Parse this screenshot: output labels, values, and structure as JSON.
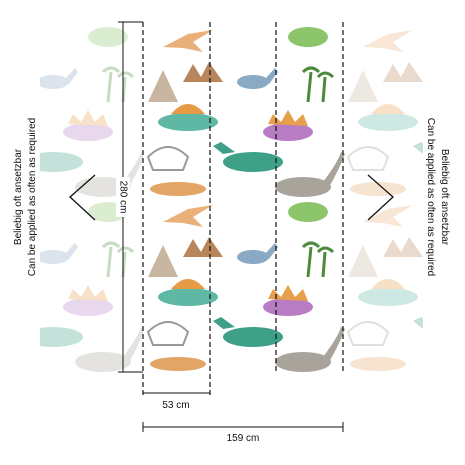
{
  "dimensions": {
    "height": "280 cm",
    "panel_width": "53 cm",
    "total_width": "159 cm"
  },
  "notes": {
    "left": {
      "line1": "Beliebig oft ansetzbar",
      "line2": "Can be applied as often as required"
    },
    "right": {
      "line1": "Beliebig oft ansetzbar",
      "line2": "Can be applied as often as required"
    }
  }
}
